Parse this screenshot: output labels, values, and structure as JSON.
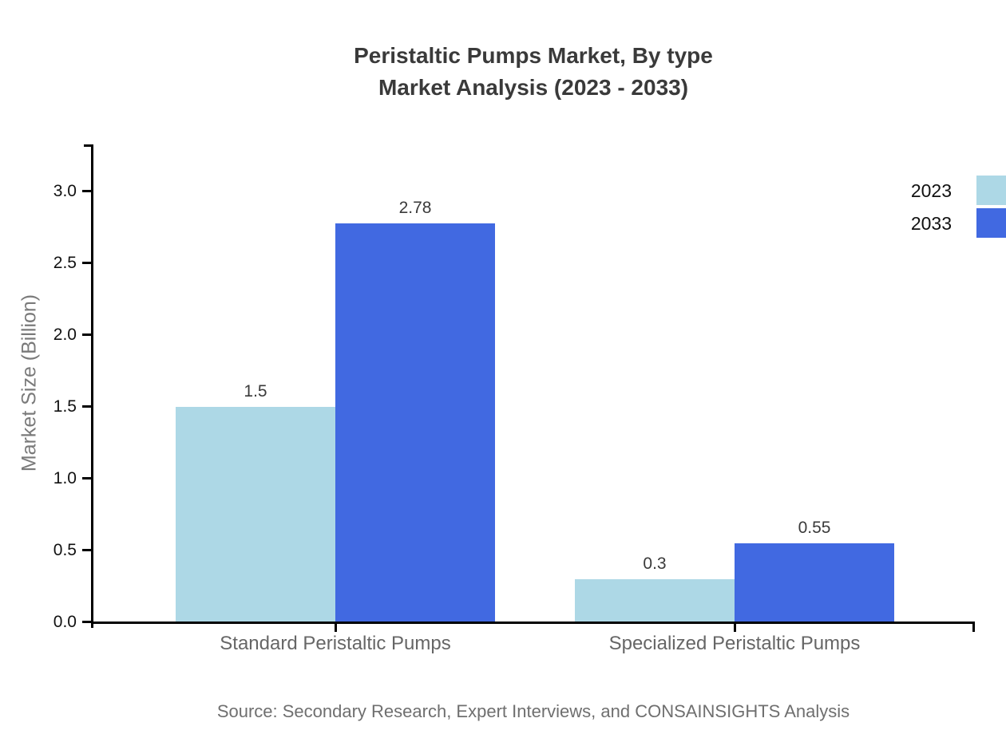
{
  "chart_data": {
    "type": "bar",
    "title_lines": [
      "Peristaltic Pumps Market, By type",
      "Market Analysis (2023 - 2033)"
    ],
    "title": "Peristaltic Pumps Market, By type Market Analysis (2023 - 2033)",
    "categories": [
      "Standard Peristaltic Pumps",
      "Specialized Peristaltic Pumps"
    ],
    "series": [
      {
        "name": "2023",
        "color": "#ADD8E6",
        "values": [
          1.5,
          0.3
        ],
        "value_labels": [
          "1.5",
          "0.3"
        ]
      },
      {
        "name": "2033",
        "color": "#4169E1",
        "values": [
          2.78,
          0.55
        ],
        "value_labels": [
          "2.78",
          "0.55"
        ]
      }
    ],
    "xlabel": "",
    "ylabel": "Market Size (Billion)",
    "ylim": [
      0,
      3.3
    ],
    "yticks": [
      0.0,
      0.5,
      1.0,
      1.5,
      2.0,
      2.5,
      3.0
    ],
    "ytick_labels": [
      "0.0",
      "0.5",
      "1.0",
      "1.5",
      "2.0",
      "2.5",
      "3.0"
    ],
    "grid": false,
    "legend_position": "top-right",
    "axis_color": "#000000",
    "background_color": "#ffffff"
  },
  "footer": {
    "source": "Source: Secondary Research, Expert Interviews, and CONSAINSIGHTS Analysis"
  }
}
